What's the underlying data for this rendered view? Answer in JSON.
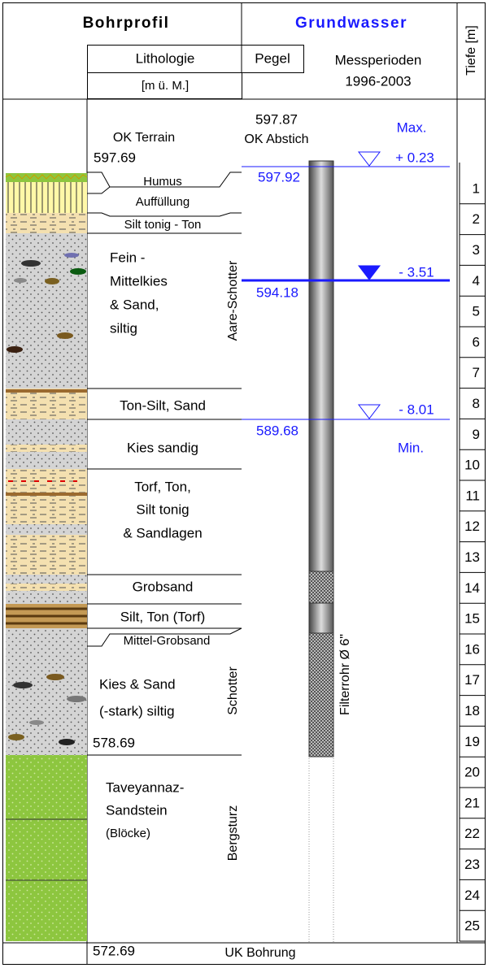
{
  "header": {
    "borehole_profile": "Bohrprofil",
    "groundwater": "Grundwasser",
    "depth": "Tiefe [m]",
    "lithology": "Lithologie",
    "gauge": "Pegel",
    "elevation_unit": "[m ü. M.]",
    "periods": "Messperioden",
    "period_range": "1996-2003"
  },
  "references": {
    "pipe_top": "597.87",
    "pipe_top_label": "OK Abstich",
    "terrain_label": "OK Terrain",
    "terrain": "597.69",
    "layer_base": "578.69",
    "bottom": "572.69",
    "bottom_label": "UK Bohrung"
  },
  "water_levels": {
    "max_label": "Max.",
    "min_label": "Min.",
    "levels": [
      {
        "elevation": "597.92",
        "change": "+ 0.23"
      },
      {
        "elevation": "594.18",
        "change": "- 3.51"
      },
      {
        "elevation": "589.68",
        "change": "- 8.01"
      }
    ]
  },
  "layers": [
    {
      "lines": [
        "Humus"
      ]
    },
    {
      "lines": [
        "Auffüllung"
      ]
    },
    {
      "lines": [
        "Silt tonig - Ton"
      ]
    },
    {
      "lines": [
        "Fein -",
        "Mittelkies",
        "& Sand,",
        "siltig"
      ]
    },
    {
      "lines": [
        "Ton-Silt, Sand"
      ]
    },
    {
      "lines": [
        "Kies sandig"
      ]
    },
    {
      "lines": [
        "Torf, Ton,",
        "Silt tonig",
        "& Sandlagen"
      ]
    },
    {
      "lines": [
        "Grobsand"
      ]
    },
    {
      "lines": [
        "Silt, Ton (Torf)"
      ]
    },
    {
      "lines": [
        "Mittel-Grobsand"
      ]
    },
    {
      "lines": [
        "Kies & Sand",
        "(-stark) siltig"
      ]
    },
    {
      "lines": [
        "Taveyannaz-",
        "Sandstein",
        "(Blöcke)"
      ]
    }
  ],
  "formations": [
    "Aare-Schotter",
    "Schotter",
    "Bergsturz"
  ],
  "filter_pipe": "Filterrohr Ø 6\"",
  "depth_ticks": [
    1,
    2,
    3,
    4,
    5,
    6,
    7,
    8,
    9,
    10,
    11,
    12,
    13,
    14,
    15,
    16,
    17,
    18,
    19,
    20,
    21,
    22,
    23,
    24,
    25
  ]
}
